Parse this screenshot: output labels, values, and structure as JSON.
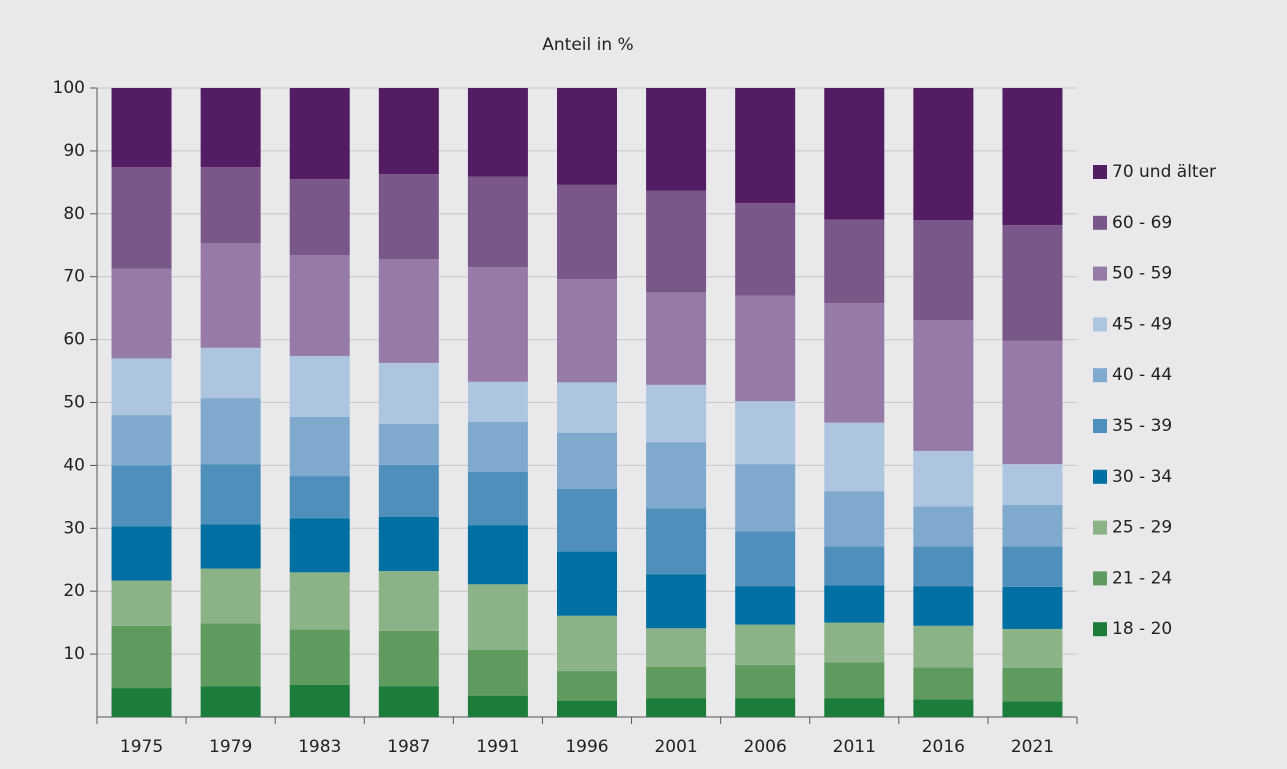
{
  "chart_data": {
    "type": "stacked_bar",
    "title": "Anteil in %",
    "categories": [
      "1975",
      "1979",
      "1983",
      "1987",
      "1991",
      "1996",
      "2001",
      "2006",
      "2011",
      "2016",
      "2021"
    ],
    "series": [
      {
        "name": "18 - 20",
        "color": "#1b7c3b",
        "values": [
          4.6,
          4.9,
          5.1,
          4.9,
          3.4,
          2.6,
          3.0,
          3.0,
          3.0,
          2.8,
          2.5
        ]
      },
      {
        "name": "21 - 24",
        "color": "#5f9a5f",
        "values": [
          9.9,
          10.0,
          8.8,
          8.8,
          7.3,
          4.7,
          5.0,
          5.3,
          5.7,
          5.1,
          5.3
        ]
      },
      {
        "name": "25 - 29",
        "color": "#8cb388",
        "values": [
          7.2,
          8.7,
          9.1,
          9.5,
          10.4,
          8.8,
          6.1,
          6.4,
          6.3,
          6.6,
          6.2
        ]
      },
      {
        "name": "30 - 34",
        "color": "#0070a2",
        "values": [
          8.6,
          7.0,
          8.6,
          8.6,
          9.4,
          10.2,
          8.6,
          6.1,
          5.9,
          6.3,
          6.7
        ]
      },
      {
        "name": "35 - 39",
        "color": "#4f8fbb",
        "values": [
          9.7,
          9.6,
          6.7,
          8.3,
          8.5,
          10.0,
          10.5,
          8.7,
          6.2,
          6.3,
          6.4
        ]
      },
      {
        "name": "40 - 44",
        "color": "#7fa9cd",
        "values": [
          8.0,
          10.5,
          9.4,
          6.5,
          7.9,
          8.9,
          10.5,
          10.7,
          8.8,
          6.4,
          6.6
        ]
      },
      {
        "name": "45 - 49",
        "color": "#adc5df",
        "values": [
          9.0,
          8.0,
          9.7,
          9.7,
          6.4,
          8.0,
          9.1,
          10.0,
          10.9,
          8.8,
          6.5
        ]
      },
      {
        "name": "50 - 59",
        "color": "#967aa7",
        "values": [
          14.3,
          16.6,
          16.0,
          16.5,
          18.2,
          16.4,
          14.7,
          16.8,
          19.0,
          20.8,
          19.6
        ]
      },
      {
        "name": "60 - 69",
        "color": "#795789",
        "values": [
          16.1,
          12.1,
          12.1,
          13.5,
          14.4,
          15.0,
          16.2,
          14.7,
          13.3,
          15.9,
          18.4
        ]
      },
      {
        "name": "70 und älter",
        "color": "#541c62",
        "values": [
          12.6,
          12.6,
          14.5,
          13.7,
          14.1,
          15.4,
          16.3,
          18.3,
          20.9,
          21.0,
          21.8
        ]
      }
    ],
    "ylim": [
      0,
      100
    ],
    "yticks": [
      10,
      20,
      30,
      40,
      50,
      60,
      70,
      80,
      90,
      100
    ],
    "grid": true,
    "legend": "right"
  }
}
